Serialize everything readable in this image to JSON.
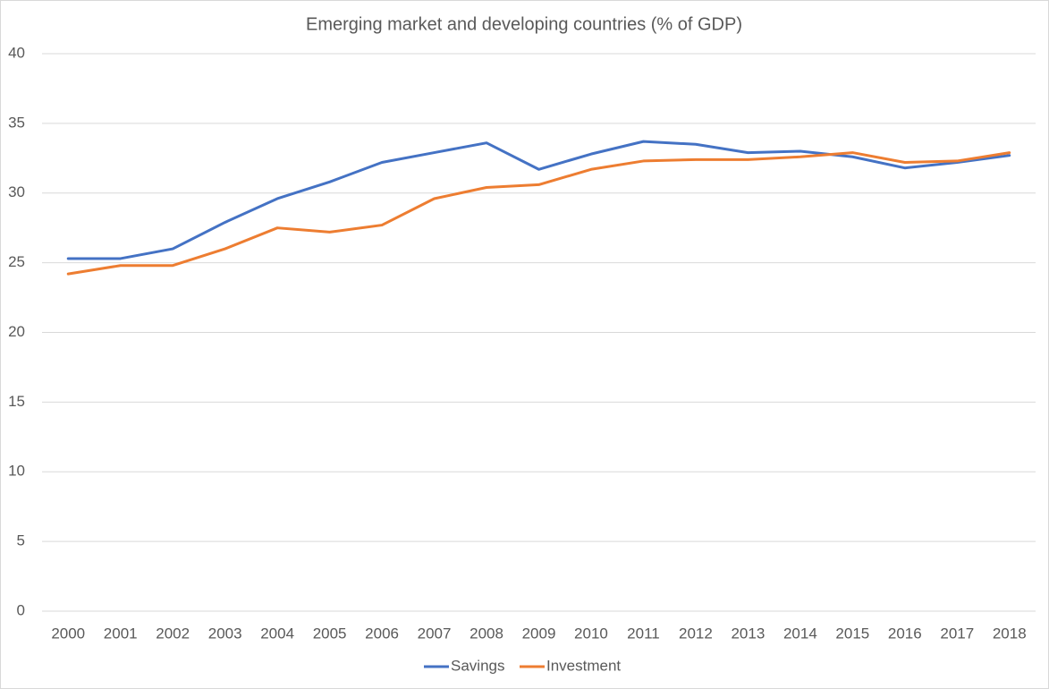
{
  "chart_data": {
    "type": "line",
    "title": "Emerging market and developing countries (% of GDP)",
    "categories": [
      "2000",
      "2001",
      "2002",
      "2003",
      "2004",
      "2005",
      "2006",
      "2007",
      "2008",
      "2009",
      "2010",
      "2011",
      "2012",
      "2013",
      "2014",
      "2015",
      "2016",
      "2017",
      "2018"
    ],
    "series": [
      {
        "name": "Savings",
        "color": "#4472c4",
        "values": [
          25.3,
          25.3,
          26.0,
          27.9,
          29.6,
          30.8,
          32.2,
          32.9,
          33.6,
          31.7,
          32.8,
          33.7,
          33.5,
          32.9,
          33.0,
          32.6,
          31.8,
          32.2,
          32.7
        ]
      },
      {
        "name": "Investment",
        "color": "#ed7d31",
        "values": [
          24.2,
          24.8,
          24.8,
          26.0,
          27.5,
          27.2,
          27.7,
          29.6,
          30.4,
          30.6,
          31.7,
          32.3,
          32.4,
          32.4,
          32.6,
          32.9,
          32.2,
          32.3,
          32.9
        ]
      }
    ],
    "ylim": [
      0,
      40
    ],
    "yticks": [
      0,
      5,
      10,
      15,
      20,
      25,
      30,
      35,
      40
    ],
    "grid": true,
    "legend": "bottom"
  }
}
